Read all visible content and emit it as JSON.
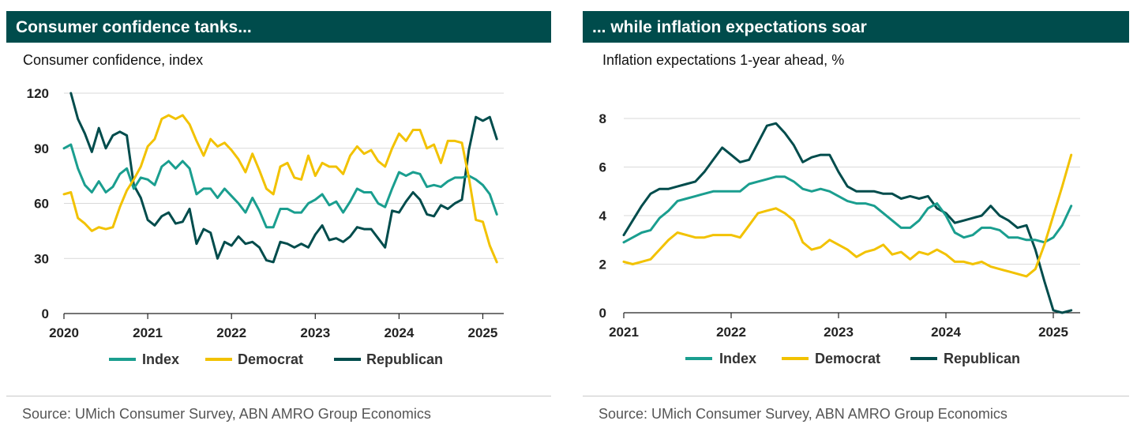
{
  "chart_data": [
    {
      "type": "line",
      "title": "Consumer confidence tanks...",
      "subtitle": "Consumer confidence, index",
      "source": "Source:  UMich Consumer Survey, ABN AMRO Group Economics",
      "xlim": [
        2020.0,
        2025.25
      ],
      "ylim": [
        0,
        120
      ],
      "y_ticks": [
        "0",
        "30",
        "60",
        "90",
        "120"
      ],
      "x_ticks": [
        "2020",
        "2021",
        "2022",
        "2023",
        "2024",
        "2025"
      ],
      "grid": "horizontal",
      "legend": "bottom",
      "series": [
        {
          "name": "Index",
          "color": "#1a9e8f",
          "x": [
            2020.0,
            2020.083,
            2020.167,
            2020.25,
            2020.333,
            2020.417,
            2020.5,
            2020.583,
            2020.667,
            2020.75,
            2020.833,
            2020.917,
            2021.0,
            2021.083,
            2021.167,
            2021.25,
            2021.333,
            2021.417,
            2021.5,
            2021.583,
            2021.667,
            2021.75,
            2021.833,
            2021.917,
            2022.0,
            2022.083,
            2022.167,
            2022.25,
            2022.333,
            2022.417,
            2022.5,
            2022.583,
            2022.667,
            2022.75,
            2022.833,
            2022.917,
            2023.0,
            2023.083,
            2023.167,
            2023.25,
            2023.333,
            2023.417,
            2023.5,
            2023.583,
            2023.667,
            2023.75,
            2023.833,
            2023.917,
            2024.0,
            2024.083,
            2024.167,
            2024.25,
            2024.333,
            2024.417,
            2024.5,
            2024.583,
            2024.667,
            2024.75,
            2024.833,
            2024.917,
            2025.0,
            2025.083,
            2025.167
          ],
          "y": [
            90,
            92,
            79,
            70,
            66,
            72,
            66,
            69,
            76,
            79,
            68,
            74,
            73,
            70,
            80,
            83,
            79,
            83,
            79,
            65,
            68,
            68,
            63,
            68,
            64,
            60,
            55,
            63,
            56,
            47,
            47,
            57,
            57,
            55,
            55,
            60,
            62,
            65,
            59,
            61,
            55,
            61,
            68,
            66,
            66,
            60,
            58,
            68,
            77,
            75,
            77,
            76,
            69,
            70,
            69,
            72,
            74,
            74,
            75,
            73,
            70,
            65,
            54
          ]
        },
        {
          "name": "Democrat",
          "color": "#f2c200",
          "x": [
            2020.0,
            2020.083,
            2020.167,
            2020.25,
            2020.333,
            2020.417,
            2020.5,
            2020.583,
            2020.667,
            2020.75,
            2020.833,
            2020.917,
            2021.0,
            2021.083,
            2021.167,
            2021.25,
            2021.333,
            2021.417,
            2021.5,
            2021.583,
            2021.667,
            2021.75,
            2021.833,
            2021.917,
            2022.0,
            2022.083,
            2022.167,
            2022.25,
            2022.333,
            2022.417,
            2022.5,
            2022.583,
            2022.667,
            2022.75,
            2022.833,
            2022.917,
            2023.0,
            2023.083,
            2023.167,
            2023.25,
            2023.333,
            2023.417,
            2023.5,
            2023.583,
            2023.667,
            2023.75,
            2023.833,
            2023.917,
            2024.0,
            2024.083,
            2024.167,
            2024.25,
            2024.333,
            2024.417,
            2024.5,
            2024.583,
            2024.667,
            2024.75,
            2024.833,
            2024.917,
            2025.0,
            2025.083,
            2025.167
          ],
          "y": [
            65,
            66,
            52,
            49,
            45,
            47,
            46,
            47,
            58,
            67,
            73,
            80,
            91,
            95,
            106,
            108,
            106,
            108,
            103,
            94,
            86,
            95,
            91,
            93,
            89,
            84,
            77,
            87,
            78,
            68,
            65,
            80,
            82,
            74,
            73,
            86,
            75,
            82,
            80,
            80,
            76,
            86,
            91,
            87,
            89,
            83,
            80,
            90,
            98,
            94,
            100,
            100,
            90,
            92,
            82,
            94,
            94,
            93,
            74,
            51,
            50,
            37,
            28
          ]
        },
        {
          "name": "Republican",
          "color": "#004c4c",
          "x": [
            2020.083,
            2020.167,
            2020.25,
            2020.333,
            2020.417,
            2020.5,
            2020.583,
            2020.667,
            2020.75,
            2020.833,
            2020.917,
            2021.0,
            2021.083,
            2021.167,
            2021.25,
            2021.333,
            2021.417,
            2021.5,
            2021.583,
            2021.667,
            2021.75,
            2021.833,
            2021.917,
            2022.0,
            2022.083,
            2022.167,
            2022.25,
            2022.333,
            2022.417,
            2022.5,
            2022.583,
            2022.667,
            2022.75,
            2022.833,
            2022.917,
            2023.0,
            2023.083,
            2023.167,
            2023.25,
            2023.333,
            2023.417,
            2023.5,
            2023.583,
            2023.667,
            2023.75,
            2023.833,
            2023.917,
            2024.0,
            2024.083,
            2024.167,
            2024.25,
            2024.333,
            2024.417,
            2024.5,
            2024.583,
            2024.667,
            2024.75,
            2024.833,
            2024.917,
            2025.0,
            2025.083,
            2025.167
          ],
          "y": [
            120,
            106,
            98,
            88,
            101,
            90,
            97,
            99,
            97,
            70,
            63,
            51,
            48,
            53,
            55,
            49,
            50,
            57,
            38,
            46,
            44,
            30,
            39,
            37,
            42,
            38,
            39,
            36,
            29,
            28,
            39,
            38,
            36,
            38,
            36,
            43,
            48,
            40,
            41,
            39,
            42,
            47,
            46,
            46,
            41,
            36,
            56,
            55,
            61,
            66,
            62,
            54,
            53,
            59,
            57,
            60,
            62,
            89,
            107,
            105,
            107,
            95
          ]
        }
      ]
    },
    {
      "type": "line",
      "title": "... while inflation expectations soar",
      "subtitle": "Inflation expectations 1-year ahead, %",
      "source": "Source:  UMich Consumer Survey, ABN AMRO Group Economics",
      "xlim": [
        2021.0,
        2025.25
      ],
      "ylim": [
        0,
        8
      ],
      "y_ticks": [
        "0",
        "2",
        "4",
        "6",
        "8"
      ],
      "x_ticks": [
        "2021",
        "2022",
        "2023",
        "2024",
        "2025"
      ],
      "grid": "horizontal",
      "legend": "bottom",
      "series": [
        {
          "name": "Index",
          "color": "#1a9e8f",
          "x": [
            2021.0,
            2021.083,
            2021.167,
            2021.25,
            2021.333,
            2021.417,
            2021.5,
            2021.583,
            2021.667,
            2021.75,
            2021.833,
            2021.917,
            2022.0,
            2022.083,
            2022.167,
            2022.25,
            2022.333,
            2022.417,
            2022.5,
            2022.583,
            2022.667,
            2022.75,
            2022.833,
            2022.917,
            2023.0,
            2023.083,
            2023.167,
            2023.25,
            2023.333,
            2023.417,
            2023.5,
            2023.583,
            2023.667,
            2023.75,
            2023.833,
            2023.917,
            2024.0,
            2024.083,
            2024.167,
            2024.25,
            2024.333,
            2024.417,
            2024.5,
            2024.583,
            2024.667,
            2024.75,
            2024.833,
            2024.917,
            2025.0,
            2025.083,
            2025.167
          ],
          "y": [
            2.9,
            3.1,
            3.3,
            3.4,
            3.9,
            4.2,
            4.6,
            4.7,
            4.8,
            4.9,
            5.0,
            5.0,
            5.0,
            5.0,
            5.3,
            5.4,
            5.5,
            5.6,
            5.6,
            5.4,
            5.1,
            5.0,
            5.1,
            5.0,
            4.8,
            4.6,
            4.5,
            4.5,
            4.4,
            4.1,
            3.8,
            3.5,
            3.5,
            3.8,
            4.3,
            4.5,
            4.0,
            3.3,
            3.1,
            3.2,
            3.5,
            3.5,
            3.4,
            3.1,
            3.1,
            3.0,
            3.0,
            2.9,
            3.1,
            3.6,
            4.4
          ]
        },
        {
          "name": "Democrat",
          "color": "#f2c200",
          "x": [
            2021.0,
            2021.083,
            2021.167,
            2021.25,
            2021.333,
            2021.417,
            2021.5,
            2021.583,
            2021.667,
            2021.75,
            2021.833,
            2021.917,
            2022.0,
            2022.083,
            2022.167,
            2022.25,
            2022.333,
            2022.417,
            2022.5,
            2022.583,
            2022.667,
            2022.75,
            2022.833,
            2022.917,
            2023.0,
            2023.083,
            2023.167,
            2023.25,
            2023.333,
            2023.417,
            2023.5,
            2023.583,
            2023.667,
            2023.75,
            2023.833,
            2023.917,
            2024.0,
            2024.083,
            2024.167,
            2024.25,
            2024.333,
            2024.417,
            2024.5,
            2024.583,
            2024.667,
            2024.75,
            2024.833,
            2024.917,
            2025.0,
            2025.083,
            2025.167
          ],
          "y": [
            2.1,
            2.0,
            2.1,
            2.2,
            2.6,
            3.0,
            3.3,
            3.2,
            3.1,
            3.1,
            3.2,
            3.2,
            3.2,
            3.1,
            3.6,
            4.1,
            4.2,
            4.3,
            4.1,
            3.8,
            2.9,
            2.6,
            2.7,
            3.0,
            2.8,
            2.6,
            2.3,
            2.5,
            2.6,
            2.8,
            2.4,
            2.5,
            2.2,
            2.5,
            2.4,
            2.6,
            2.4,
            2.1,
            2.1,
            2.0,
            2.1,
            1.9,
            1.8,
            1.7,
            1.6,
            1.5,
            1.8,
            2.8,
            4.0,
            5.2,
            6.5
          ]
        },
        {
          "name": "Republican",
          "color": "#004c4c",
          "x": [
            2021.0,
            2021.083,
            2021.167,
            2021.25,
            2021.333,
            2021.417,
            2021.5,
            2021.583,
            2021.667,
            2021.75,
            2021.833,
            2021.917,
            2022.0,
            2022.083,
            2022.167,
            2022.25,
            2022.333,
            2022.417,
            2022.5,
            2022.583,
            2022.667,
            2022.75,
            2022.833,
            2022.917,
            2023.0,
            2023.083,
            2023.167,
            2023.25,
            2023.333,
            2023.417,
            2023.5,
            2023.583,
            2023.667,
            2023.75,
            2023.833,
            2023.917,
            2024.0,
            2024.083,
            2024.167,
            2024.25,
            2024.333,
            2024.417,
            2024.5,
            2024.583,
            2024.667,
            2024.75,
            2024.833,
            2024.917,
            2025.0,
            2025.083,
            2025.167
          ],
          "y": [
            3.2,
            3.8,
            4.4,
            4.9,
            5.1,
            5.1,
            5.2,
            5.3,
            5.4,
            5.8,
            6.3,
            6.8,
            6.5,
            6.2,
            6.3,
            7.0,
            7.7,
            7.8,
            7.4,
            6.9,
            6.2,
            6.4,
            6.5,
            6.5,
            5.8,
            5.2,
            5.0,
            5.0,
            5.0,
            4.9,
            4.9,
            4.7,
            4.8,
            4.7,
            4.8,
            4.3,
            4.1,
            3.7,
            3.8,
            3.9,
            4.0,
            4.4,
            4.0,
            3.8,
            3.5,
            3.6,
            2.6,
            1.3,
            0.1,
            0.0,
            0.1
          ]
        }
      ]
    }
  ]
}
